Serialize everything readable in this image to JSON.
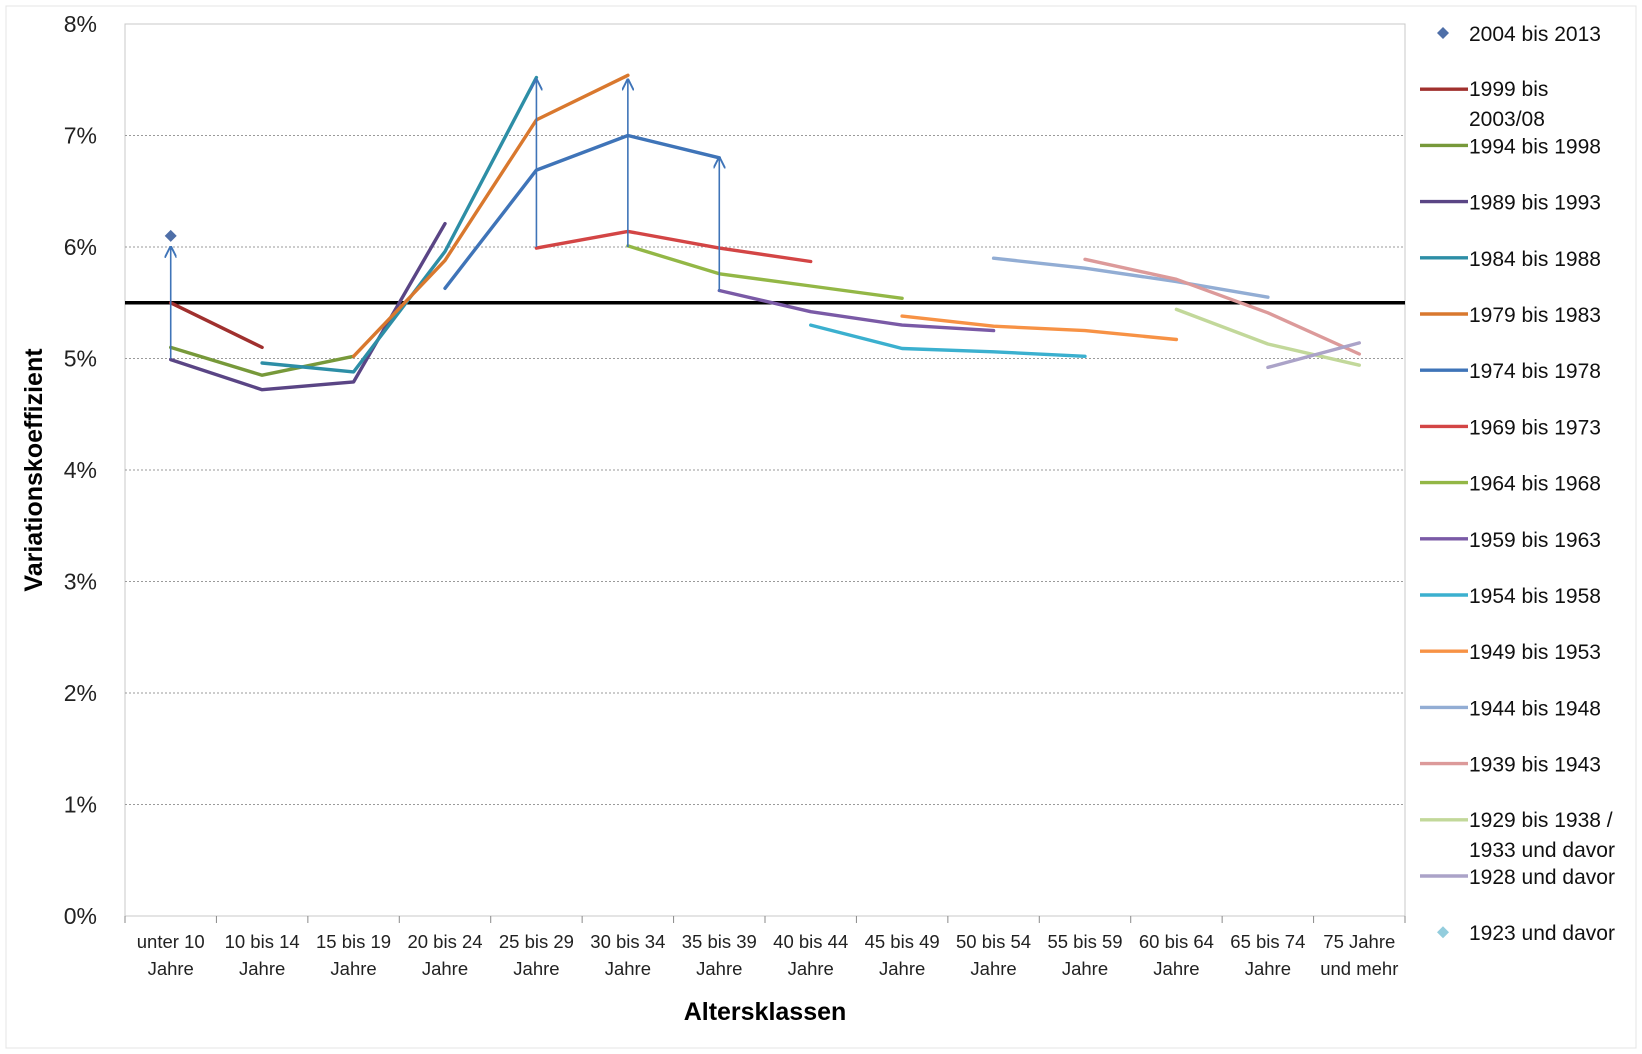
{
  "chart_data": {
    "type": "line",
    "title": "",
    "xlabel": "Altersklassen",
    "ylabel": "Variationskoeffizient",
    "ylim": [
      0,
      0.08
    ],
    "yticks": [
      "0%",
      "1%",
      "2%",
      "3%",
      "4%",
      "5%",
      "6%",
      "7%",
      "8%"
    ],
    "categories": [
      [
        "unter 10",
        "Jahre"
      ],
      [
        "10 bis 14",
        "Jahre"
      ],
      [
        "15 bis 19",
        "Jahre"
      ],
      [
        "20 bis 24",
        "Jahre"
      ],
      [
        "25 bis 29",
        "Jahre"
      ],
      [
        "30 bis 34",
        "Jahre"
      ],
      [
        "35 bis 39",
        "Jahre"
      ],
      [
        "40 bis 44",
        "Jahre"
      ],
      [
        "45 bis 49",
        "Jahre"
      ],
      [
        "50 bis 54",
        "Jahre"
      ],
      [
        "55 bis 59",
        "Jahre"
      ],
      [
        "60 bis 64",
        "Jahre"
      ],
      [
        "65 bis 74",
        "Jahre"
      ],
      [
        "75 Jahre",
        "und mehr"
      ]
    ],
    "grid": "horizontal, dotted",
    "legend_position": "right",
    "reference_line": {
      "value": 0.055,
      "color": "#000000"
    },
    "series": [
      {
        "name": "2004 bis 2013",
        "type": "marker",
        "color": "#4F6FA8",
        "marker": "diamond",
        "points": [
          [
            0,
            0.061
          ]
        ]
      },
      {
        "name": "1999 bis 2003/08",
        "color": "#A0302E",
        "points": [
          [
            0,
            0.055
          ],
          [
            1,
            0.051
          ]
        ]
      },
      {
        "name": "1994 bis 1998",
        "color": "#77993A",
        "points": [
          [
            0,
            0.051
          ],
          [
            1,
            0.0485
          ],
          [
            2,
            0.0502
          ]
        ]
      },
      {
        "name": "1989 bis 1993",
        "color": "#5A4585",
        "points": [
          [
            0,
            0.0499
          ],
          [
            1,
            0.0472
          ],
          [
            2,
            0.0479
          ],
          [
            3,
            0.0621
          ]
        ]
      },
      {
        "name": "1984 bis 1988",
        "color": "#2D8EA6",
        "points": [
          [
            1,
            0.0496
          ],
          [
            2,
            0.0488
          ],
          [
            3,
            0.0596
          ],
          [
            4,
            0.0752
          ]
        ]
      },
      {
        "name": "1979 bis 1983",
        "color": "#D9782E",
        "points": [
          [
            2,
            0.0502
          ],
          [
            3,
            0.0588
          ],
          [
            4,
            0.0714
          ],
          [
            5,
            0.0754
          ]
        ]
      },
      {
        "name": "1974 bis 1978",
        "color": "#3F74B8",
        "points": [
          [
            3,
            0.0563
          ],
          [
            4,
            0.0669
          ],
          [
            5,
            0.07
          ],
          [
            6,
            0.068
          ]
        ]
      },
      {
        "name": "1969 bis 1973",
        "color": "#D34545",
        "points": [
          [
            4,
            0.0599
          ],
          [
            5,
            0.0614
          ],
          [
            6,
            0.0599
          ],
          [
            7,
            0.0587
          ]
        ]
      },
      {
        "name": "1964 bis 1968",
        "color": "#93B746",
        "points": [
          [
            5,
            0.0601
          ],
          [
            6,
            0.0576
          ],
          [
            7,
            0.0565
          ],
          [
            8,
            0.0554
          ]
        ]
      },
      {
        "name": "1959 bis 1963",
        "color": "#7A5AA6",
        "points": [
          [
            6,
            0.0561
          ],
          [
            7,
            0.0542
          ],
          [
            8,
            0.053
          ],
          [
            9,
            0.0525
          ]
        ]
      },
      {
        "name": "1954 bis 1958",
        "color": "#3BB0CF",
        "points": [
          [
            7,
            0.053
          ],
          [
            8,
            0.0509
          ],
          [
            9,
            0.0506
          ],
          [
            10,
            0.0502
          ]
        ]
      },
      {
        "name": "1949 bis 1953",
        "color": "#F79245",
        "points": [
          [
            8,
            0.0538
          ],
          [
            9,
            0.0529
          ],
          [
            10,
            0.0525
          ],
          [
            11,
            0.0517
          ]
        ]
      },
      {
        "name": "1944 bis 1948",
        "color": "#92ADD4",
        "points": [
          [
            9,
            0.059
          ],
          [
            10,
            0.0581
          ],
          [
            11,
            0.0569
          ],
          [
            12,
            0.0555
          ]
        ]
      },
      {
        "name": "1939 bis 1943",
        "color": "#DC9A9A",
        "points": [
          [
            10,
            0.0589
          ],
          [
            11,
            0.0571
          ],
          [
            12,
            0.0541
          ],
          [
            13,
            0.0504
          ]
        ]
      },
      {
        "name": "1929 bis 1938 / 1933 und davor",
        "color": "#C2D89A",
        "points": [
          [
            11,
            0.0544
          ],
          [
            12,
            0.0513
          ],
          [
            13,
            0.0494
          ]
        ]
      },
      {
        "name": "1928 und davor",
        "color": "#ABA3C8",
        "points": [
          [
            12,
            0.0492
          ],
          [
            13,
            0.0514
          ]
        ]
      },
      {
        "name": "1923 und davor",
        "type": "marker",
        "color": "#93CDDD",
        "marker": "diamond",
        "points": []
      }
    ],
    "legend": [
      {
        "label": "2004 bis 2013",
        "symbol": "diamond",
        "color": "#4F6FA8"
      },
      {
        "label": "1999 bis 2003/08",
        "lines": [
          "1999 bis",
          "2003/08"
        ],
        "symbol": "line",
        "color": "#A0302E"
      },
      {
        "label": "1994 bis 1998",
        "symbol": "line",
        "color": "#77993A"
      },
      {
        "label": "1989 bis 1993",
        "symbol": "line",
        "color": "#5A4585"
      },
      {
        "label": "1984 bis 1988",
        "symbol": "line",
        "color": "#2D8EA6"
      },
      {
        "label": "1979 bis 1983",
        "symbol": "line",
        "color": "#D9782E"
      },
      {
        "label": "1974 bis 1978",
        "symbol": "line",
        "color": "#3F74B8"
      },
      {
        "label": "1969 bis 1973",
        "symbol": "line",
        "color": "#D34545"
      },
      {
        "label": "1964 bis 1968",
        "symbol": "line",
        "color": "#93B746"
      },
      {
        "label": "1959 bis 1963",
        "symbol": "line",
        "color": "#7A5AA6"
      },
      {
        "label": "1954 bis 1958",
        "symbol": "line",
        "color": "#3BB0CF"
      },
      {
        "label": "1949 bis 1953",
        "symbol": "line",
        "color": "#F79245"
      },
      {
        "label": "1944 bis 1948",
        "symbol": "line",
        "color": "#92ADD4"
      },
      {
        "label": "1939 bis 1943",
        "symbol": "line",
        "color": "#DC9A9A"
      },
      {
        "label": "1929 bis 1938 / 1933 und davor",
        "lines": [
          "1929 bis 1938 /",
          "1933 und davor"
        ],
        "symbol": "line",
        "color": "#C2D89A"
      },
      {
        "label": "1928 und davor",
        "symbol": "line",
        "color": "#ABA3C8"
      },
      {
        "label": "1923 und davor",
        "symbol": "diamond",
        "color": "#93CDDD"
      }
    ],
    "annotations": [
      {
        "type": "arrow",
        "x": 0,
        "from": 0.05,
        "to": 0.06,
        "color": "#3F74B8"
      },
      {
        "type": "arrow",
        "x": 4,
        "from": 0.06,
        "to": 0.075,
        "color": "#3F74B8"
      },
      {
        "type": "arrow",
        "x": 5,
        "from": 0.06,
        "to": 0.075,
        "color": "#3F74B8"
      },
      {
        "type": "arrow",
        "x": 6,
        "from": 0.056,
        "to": 0.068,
        "color": "#3F74B8"
      }
    ]
  }
}
